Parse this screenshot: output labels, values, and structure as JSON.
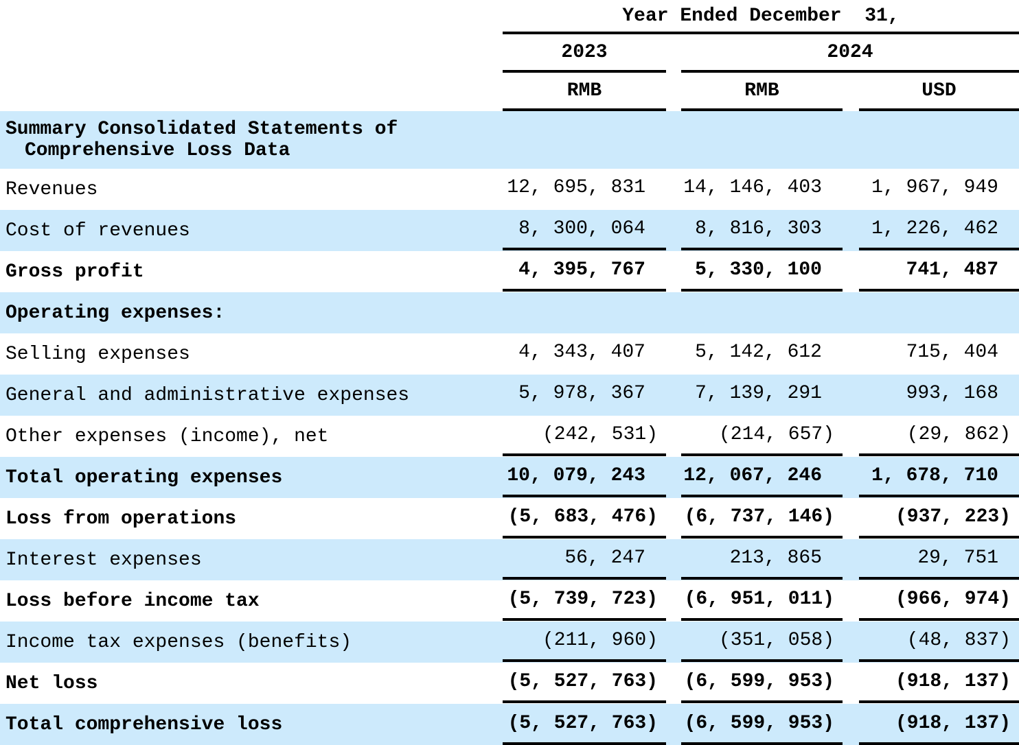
{
  "colors": {
    "row_shade": "#cdeafc",
    "text": "#000000",
    "rule": "#000000"
  },
  "header": {
    "year_ended": "Year Ended December  31,",
    "year_2023": "2023",
    "year_2024": "2024",
    "cur_2023_rmb": "RMB",
    "cur_2024_rmb": "RMB",
    "cur_2024_usd": "USD"
  },
  "rows": [
    {
      "label": "Summary Consolidated Statements of",
      "label2": "Comprehensive Loss Data",
      "v0": "",
      "v1": "",
      "v2": ""
    },
    {
      "label": "Revenues",
      "v0": "12, 695, 831",
      "v1": "14, 146, 403",
      "v2": "1, 967, 949"
    },
    {
      "label": "Cost of revenues",
      "v0": "8, 300, 064",
      "v1": "8, 816, 303",
      "v2": "1, 226, 462"
    },
    {
      "label": "Gross profit",
      "v0": "4, 395, 767",
      "v1": "5, 330, 100",
      "v2": "741, 487"
    },
    {
      "label": "Operating expenses:",
      "v0": "",
      "v1": "",
      "v2": ""
    },
    {
      "label": "Selling expenses",
      "v0": "4, 343, 407",
      "v1": "5, 142, 612",
      "v2": "715, 404"
    },
    {
      "label": "General and administrative expenses",
      "v0": "5, 978, 367",
      "v1": "7, 139, 291",
      "v2": "993, 168"
    },
    {
      "label": "Other expenses (income), net",
      "v0": "(242, 531)",
      "v1": "(214, 657)",
      "v2": "(29, 862)"
    },
    {
      "label": "Total operating expenses",
      "v0": "10, 079, 243",
      "v1": "12, 067, 246",
      "v2": "1, 678, 710"
    },
    {
      "label": "Loss from operations",
      "v0": "(5, 683, 476)",
      "v1": "(6, 737, 146)",
      "v2": "(937, 223)"
    },
    {
      "label": "Interest expenses",
      "v0": "56, 247",
      "v1": "213, 865",
      "v2": "29, 751"
    },
    {
      "label": "Loss before income tax",
      "v0": "(5, 739, 723)",
      "v1": "(6, 951, 011)",
      "v2": "(966, 974)"
    },
    {
      "label": "Income tax expenses (benefits)",
      "v0": "(211, 960)",
      "v1": "(351, 058)",
      "v2": "(48, 837)"
    },
    {
      "label": "Net loss",
      "v0": "(5, 527, 763)",
      "v1": "(6, 599, 953)",
      "v2": "(918, 137)"
    },
    {
      "label": "Total comprehensive loss",
      "v0": "(5, 527, 763)",
      "v1": "(6, 599, 953)",
      "v2": "(918, 137)"
    }
  ]
}
